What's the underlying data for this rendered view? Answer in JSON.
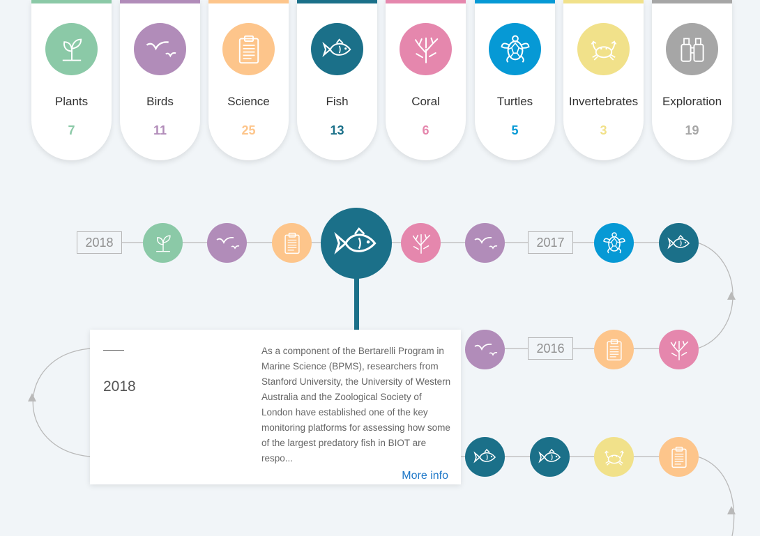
{
  "colors": {
    "plants": "#8bc9a7",
    "birds": "#b18cb9",
    "science": "#fdc58b",
    "fish": "#1b7089",
    "coral": "#e587ad",
    "turtles": "#0699d5",
    "invertebrates": "#f1e18a",
    "exploration": "#a6a6a6",
    "link": "#1f78c8"
  },
  "categories": [
    {
      "label": "Plants",
      "count": "7",
      "icon": "sprout-icon"
    },
    {
      "label": "Birds",
      "count": "11",
      "icon": "bird-icon"
    },
    {
      "label": "Science",
      "count": "25",
      "icon": "clipboard-icon"
    },
    {
      "label": "Fish",
      "count": "13",
      "icon": "fish-icon"
    },
    {
      "label": "Coral",
      "count": "6",
      "icon": "coral-icon"
    },
    {
      "label": "Turtles",
      "count": "5",
      "icon": "turtle-icon"
    },
    {
      "label": "Invertebrates",
      "count": "3",
      "icon": "crab-icon"
    },
    {
      "label": "Exploration",
      "count": "19",
      "icon": "binoculars-icon"
    }
  ],
  "timeline": {
    "years": [
      "2018",
      "2017",
      "2016"
    ],
    "row1": [
      "plants",
      "birds",
      "science",
      "fish",
      "coral",
      "birds",
      "turtles",
      "fish"
    ],
    "row2": [
      "birds",
      "science",
      "coral"
    ],
    "row3": [
      "fish",
      "fish",
      "invertebrates",
      "science"
    ],
    "selected": {
      "year": "2018",
      "text": "As a component of the Bertarelli Program in Marine Science (BPMS), researchers from Stanford University, the University of Western Australia and the Zoological Society of London have established one of the key monitoring platforms for assessing how some of the largest predatory fish in BIOT are respo...",
      "more_label": "More info"
    }
  }
}
